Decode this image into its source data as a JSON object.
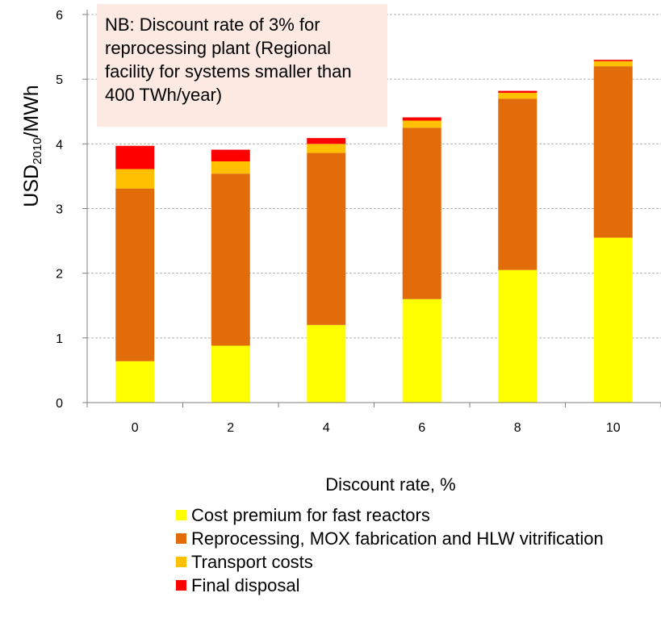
{
  "chart_data": {
    "type": "bar",
    "stacked": true,
    "categories": [
      "0",
      "2",
      "4",
      "6",
      "8",
      "10"
    ],
    "series": [
      {
        "name": "Cost premium for fast reactors",
        "color": "#ffff00",
        "values": [
          0.64,
          0.88,
          1.2,
          1.6,
          2.05,
          2.55
        ]
      },
      {
        "name": "Reprocessing, MOX fabrication and HLW vitrification",
        "color": "#e36c0a",
        "values": [
          2.67,
          2.66,
          2.66,
          2.65,
          2.65,
          2.65
        ]
      },
      {
        "name": "Transport costs",
        "color": "#ffc000",
        "values": [
          0.3,
          0.19,
          0.14,
          0.11,
          0.09,
          0.08
        ]
      },
      {
        "name": "Final disposal",
        "color": "#ff0000",
        "values": [
          0.36,
          0.18,
          0.09,
          0.05,
          0.03,
          0.02
        ]
      }
    ],
    "xlabel": "Discount rate, %",
    "ylabel_main": "USD",
    "ylabel_sub": "2010",
    "ylabel_tail": "/MWh",
    "ylim": [
      0,
      6
    ],
    "yticks": [
      "0",
      "1",
      "2",
      "3",
      "4",
      "5",
      "6"
    ],
    "grid": true,
    "legend_position": "bottom",
    "annotation": [
      "NB: Discount rate of 3% for",
      "reprocessing plant (Regional",
      "facility for systems smaller than",
      "400 TWh/year)"
    ]
  }
}
